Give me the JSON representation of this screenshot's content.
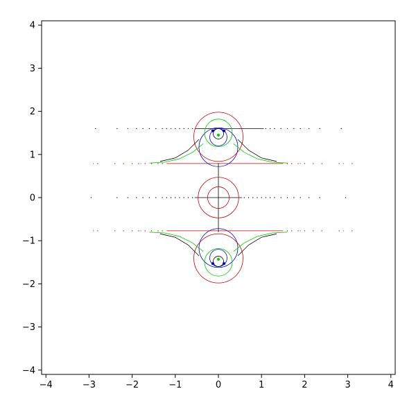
{
  "chart_data": {
    "type": "scatter",
    "title": "",
    "xlabel": "",
    "ylabel": "",
    "xlim": [
      -4.1,
      4.1
    ],
    "ylim": [
      -4.1,
      4.1
    ],
    "grid": false,
    "legend": "none",
    "x_ticks": [
      -4,
      -3,
      -2,
      -1,
      0,
      1,
      2,
      3,
      4
    ],
    "y_ticks": [
      -4,
      -3,
      -2,
      -1,
      0,
      1,
      2,
      3,
      4
    ],
    "x_tick_labels": [
      "−4",
      "−3",
      "−2",
      "−1",
      "0",
      "1",
      "2",
      "3",
      "4"
    ],
    "y_tick_labels": [
      "−4",
      "−3",
      "−2",
      "−1",
      "0",
      "1",
      "2",
      "3",
      "4"
    ],
    "colors": {
      "black": "#000000",
      "red": "#cc0000",
      "blue": "#0000cc",
      "green": "#00cc00"
    },
    "lines": [
      {
        "color": "black",
        "x": [
          -0.55,
          1.05
        ],
        "y": [
          1.6,
          1.6
        ]
      },
      {
        "color": "black",
        "x": [
          -0.55,
          0.55
        ],
        "y": [
          0.0,
          0.0
        ]
      },
      {
        "color": "red",
        "x": [
          -1.2,
          1.5
        ],
        "y": [
          0.79,
          0.79
        ]
      },
      {
        "color": "red",
        "x": [
          -1.2,
          1.5
        ],
        "y": [
          -0.77,
          -0.77
        ]
      },
      {
        "color": "black",
        "x": [
          0.0,
          0.0
        ],
        "y": [
          -0.8,
          0.8
        ]
      }
    ],
    "circles": [
      {
        "color": "red",
        "cx": 0.0,
        "cy": 0.0,
        "r": 0.47
      },
      {
        "color": "red",
        "cx": 0.0,
        "cy": 0.0,
        "r": 0.25
      },
      {
        "color": "blue",
        "cx": 0.0,
        "cy": 1.17,
        "r": 0.45
      },
      {
        "color": "blue",
        "cx": 0.0,
        "cy": -1.17,
        "r": 0.45
      },
      {
        "color": "blue",
        "cx": 0.0,
        "cy": 1.4,
        "r": 0.2
      },
      {
        "color": "blue",
        "cx": 0.0,
        "cy": -1.4,
        "r": 0.2
      },
      {
        "color": "red",
        "cx": 0.0,
        "cy": 1.41,
        "r": 0.57
      },
      {
        "color": "red",
        "cx": 0.0,
        "cy": -1.41,
        "r": 0.57
      },
      {
        "color": "green",
        "cx": 0.0,
        "cy": 1.5,
        "r": 0.32
      },
      {
        "color": "green",
        "cx": 0.0,
        "cy": -1.5,
        "r": 0.32
      },
      {
        "color": "black",
        "cx": 0.0,
        "cy": 1.48,
        "r": 0.12
      },
      {
        "color": "black",
        "cx": 0.0,
        "cy": -1.48,
        "r": 0.12
      }
    ],
    "arcs": [
      {
        "color": "green",
        "points": [
          [
            0.35,
            1.25
          ],
          [
            0.6,
            1.05
          ],
          [
            0.9,
            0.9
          ],
          [
            1.25,
            0.82
          ],
          [
            1.6,
            0.8
          ]
        ]
      },
      {
        "color": "green",
        "points": [
          [
            -0.35,
            1.25
          ],
          [
            -0.6,
            1.05
          ],
          [
            -0.9,
            0.9
          ],
          [
            -1.25,
            0.82
          ],
          [
            -1.6,
            0.8
          ]
        ]
      },
      {
        "color": "green",
        "points": [
          [
            0.35,
            -1.25
          ],
          [
            0.6,
            -1.05
          ],
          [
            0.9,
            -0.9
          ],
          [
            1.25,
            -0.82
          ],
          [
            1.6,
            -0.8
          ]
        ]
      },
      {
        "color": "green",
        "points": [
          [
            -0.35,
            -1.25
          ],
          [
            -0.6,
            -1.05
          ],
          [
            -0.9,
            -0.9
          ],
          [
            -1.25,
            -0.82
          ],
          [
            -1.6,
            -0.8
          ]
        ]
      },
      {
        "color": "black",
        "points": [
          [
            0.45,
            1.35
          ],
          [
            0.7,
            1.1
          ],
          [
            1.0,
            0.92
          ],
          [
            1.35,
            0.84
          ]
        ]
      },
      {
        "color": "black",
        "points": [
          [
            -0.45,
            1.35
          ],
          [
            -0.7,
            1.1
          ],
          [
            -1.0,
            0.92
          ],
          [
            -1.35,
            0.84
          ]
        ]
      },
      {
        "color": "black",
        "points": [
          [
            0.45,
            -1.35
          ],
          [
            0.7,
            -1.1
          ],
          [
            1.0,
            -0.92
          ],
          [
            1.35,
            -0.84
          ]
        ]
      },
      {
        "color": "black",
        "points": [
          [
            -0.45,
            -1.35
          ],
          [
            -0.7,
            -1.1
          ],
          [
            -1.0,
            -0.92
          ],
          [
            -1.35,
            -0.84
          ]
        ]
      }
    ],
    "dot_rows": [
      {
        "color": "black",
        "y": 1.6,
        "x": [
          -2.85,
          -2.35,
          -2.1,
          -1.9,
          -1.75,
          -1.6,
          -1.45,
          -1.3,
          -1.2,
          -1.1,
          -1.0,
          -0.9,
          -0.8,
          -0.7,
          -0.6,
          1.1,
          1.2,
          1.3,
          1.45,
          1.6,
          1.75,
          1.9,
          2.1,
          2.35,
          2.85
        ]
      },
      {
        "color": "black",
        "y": 0.0,
        "x": [
          -2.95,
          -2.35,
          -2.1,
          -1.9,
          -1.75,
          -1.6,
          -1.45,
          -1.3,
          -1.2,
          -1.1,
          -1.0,
          -0.9,
          -0.8,
          -0.7,
          -0.6,
          0.6,
          0.7,
          0.8,
          0.9,
          1.0,
          1.1,
          1.2,
          1.3,
          1.45,
          1.6,
          1.75,
          1.9,
          2.1,
          2.35,
          2.95
        ]
      },
      {
        "color": "red",
        "y": 0.79,
        "x": [
          -2.8,
          -2.4,
          -2.2,
          -2.0,
          -1.85,
          -1.7,
          -1.55,
          -1.4,
          -1.3,
          1.6,
          1.7,
          1.85,
          2.0,
          2.2,
          2.4,
          2.8,
          3.1
        ]
      },
      {
        "color": "green",
        "y": 0.79,
        "x": [
          -2.9,
          -1.8,
          1.9,
          2.9
        ]
      },
      {
        "color": "red",
        "y": -0.77,
        "x": [
          -2.8,
          -2.4,
          -2.2,
          -2.0,
          -1.85,
          -1.7,
          -1.55,
          -1.4,
          -1.3,
          1.6,
          1.7,
          1.85,
          2.0,
          2.2,
          2.4,
          2.8,
          3.1
        ]
      },
      {
        "color": "green",
        "y": -0.77,
        "x": [
          -2.9,
          -1.8,
          1.9,
          2.9
        ]
      }
    ],
    "markers": [
      {
        "color": "blue",
        "x": -0.13,
        "y": 1.55
      },
      {
        "color": "blue",
        "x": 0.13,
        "y": 1.55
      },
      {
        "color": "blue",
        "x": -0.13,
        "y": -1.53
      },
      {
        "color": "blue",
        "x": 0.13,
        "y": -1.53
      },
      {
        "color": "green",
        "x": 0.0,
        "y": 1.45
      },
      {
        "color": "green",
        "x": 0.0,
        "y": -1.43
      }
    ]
  }
}
